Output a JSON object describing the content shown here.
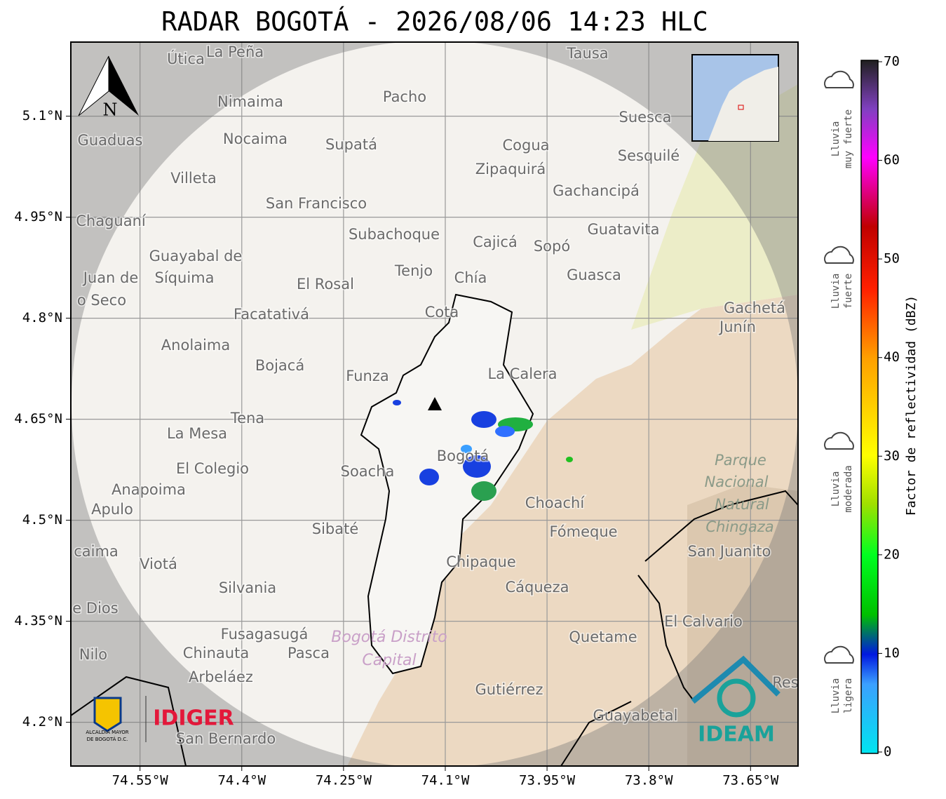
{
  "title": "RADAR BOGOTÁ - 2026/08/06 14:23 HLC",
  "map": {
    "xlim": [
      -74.652,
      -73.58
    ],
    "ylim": [
      4.135,
      5.21
    ],
    "xticks": [
      {
        "value": -74.55,
        "label": "74.55°W"
      },
      {
        "value": -74.4,
        "label": "74.4°W"
      },
      {
        "value": -74.25,
        "label": "74.25°W"
      },
      {
        "value": -74.1,
        "label": "74.1°W"
      },
      {
        "value": -73.95,
        "label": "73.95°W"
      },
      {
        "value": -73.8,
        "label": "73.8°W"
      },
      {
        "value": -73.65,
        "label": "73.65°W"
      }
    ],
    "yticks": [
      {
        "value": 5.1,
        "label": "5.1°N"
      },
      {
        "value": 4.95,
        "label": "4.95°N"
      },
      {
        "value": 4.8,
        "label": "4.8°N"
      },
      {
        "value": 4.65,
        "label": "4.65°N"
      },
      {
        "value": 4.5,
        "label": "4.5°N"
      },
      {
        "value": 4.35,
        "label": "4.35°N"
      },
      {
        "value": 4.2,
        "label": "4.2°N"
      }
    ],
    "north": "N",
    "places": [
      "Útica",
      "La Peña",
      "Tausa",
      "Pacho",
      "Nimaima",
      "Guaduas",
      "Nocaima",
      "Supatá",
      "Cogua",
      "Suesca",
      "Sesquilé",
      "Villeta",
      "Zipaquirá",
      "Gachancipá",
      "San Francisco",
      "Chaguaní",
      "Guatavita",
      "Subachoque",
      "Cajicá",
      "Sopó",
      "Guayabal de",
      "Síquima",
      "Juan de",
      "o Seco",
      "Tenjo",
      "Chía",
      "El Rosal",
      "Guasca",
      "Facatativá",
      "Cota",
      "Gachetá",
      "Junín",
      "Anolaima",
      "Bojacá",
      "Funza",
      "La Calera",
      "Tena",
      "La Mesa",
      "Bogotá",
      "Soacha",
      "El Colegio",
      "Anapoima",
      "Apulo",
      "Choachí",
      "Fómeque",
      "Sibaté",
      "San Juanito",
      "caima",
      "Viotá",
      "Chipaque",
      "Silvania",
      "Cáqueza",
      "e Dios",
      "El Calvario",
      "Fusagasugá",
      "Quetame",
      "Nilo",
      "Chinauta",
      "Pasca",
      "Arbeláez",
      "Gutiérrez",
      "Res",
      "Guayabetal",
      "San Bernardo"
    ],
    "park": [
      "Parque",
      "Nacional",
      "Natural",
      "Chingaza"
    ],
    "district": [
      "Bogotá Distrito",
      "Capital"
    ]
  },
  "colorbar": {
    "label": "Factor de reflectividad (dBZ)",
    "lim": [
      0,
      70
    ],
    "ticks": [
      0,
      10,
      20,
      30,
      40,
      50,
      60,
      70
    ]
  },
  "rain_levels": [
    [
      "Lluvia",
      "muy fuerte"
    ],
    [
      "Lluvia",
      "fuerte"
    ],
    [
      "Lluvia",
      "moderada"
    ],
    [
      "Lluvia",
      "ligera"
    ]
  ],
  "logos": {
    "alcaldia": [
      "ALCALDÍA MAYOR",
      "DE BOGOTÁ D.C."
    ],
    "idiger": "IDIGER",
    "ideam": "IDEAM"
  }
}
